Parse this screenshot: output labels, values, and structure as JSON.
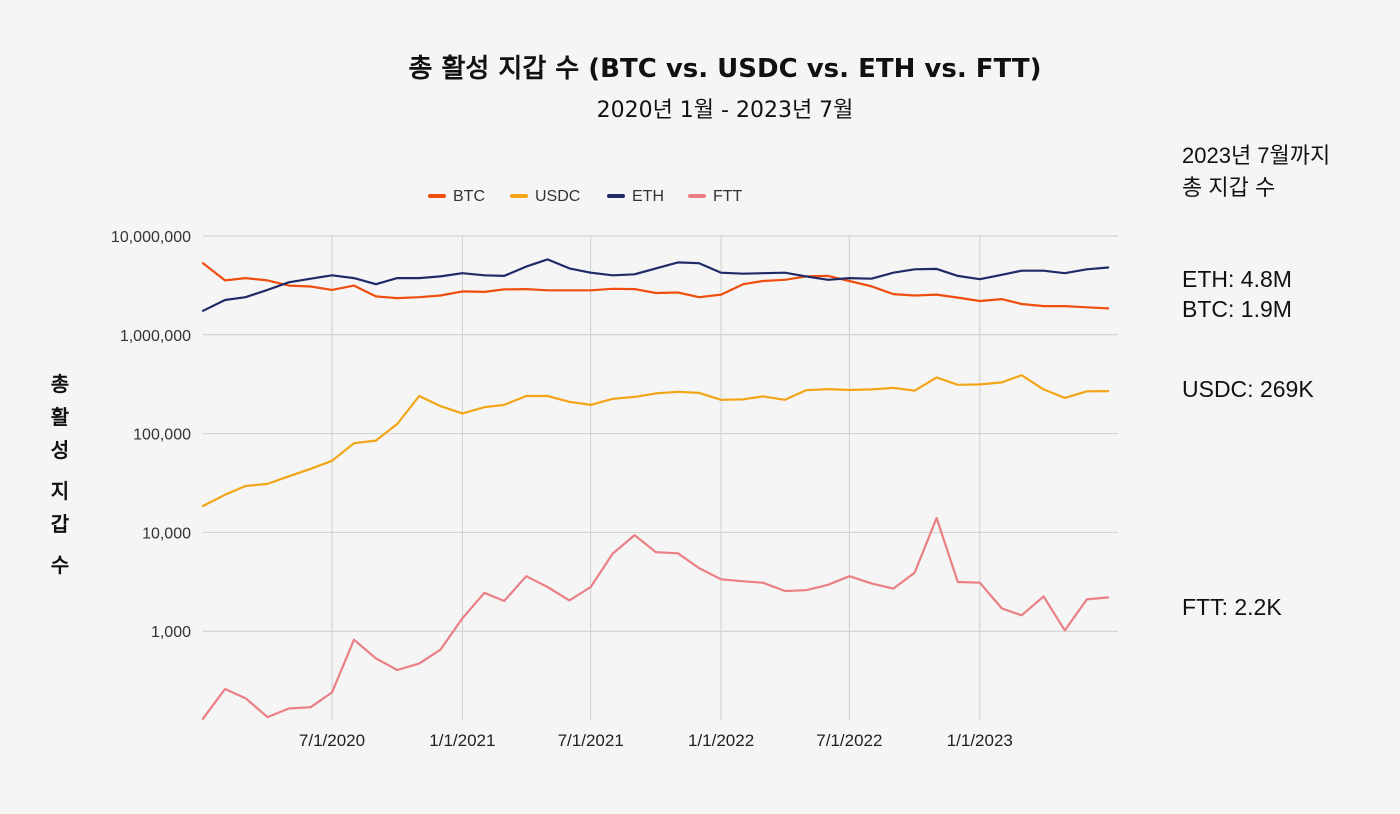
{
  "chart_data": {
    "type": "line",
    "title": "총 활성 지갑 수 (BTC vs. USDC vs. ETH vs. FTT)",
    "subtitle": "2020년 1월 - 2023년 7월",
    "ylabel": "총 활성 지갑 수",
    "xlabel": "",
    "y_scale": "log",
    "ylim": [
      130,
      10000000
    ],
    "y_ticks": [
      1000,
      10000,
      100000,
      1000000,
      10000000
    ],
    "y_tick_labels": [
      "1,000",
      "10,000",
      "100,000",
      "1,000,000",
      "10,000,000"
    ],
    "x_range": [
      "2020-01-01",
      "2023-07-15"
    ],
    "x_ticks": [
      "2020-07-01",
      "2021-01-01",
      "2021-07-01",
      "2022-01-01",
      "2022-07-01",
      "2023-01-01"
    ],
    "x_tick_labels": [
      "7/1/2020",
      "1/1/2021",
      "7/1/2021",
      "1/1/2022",
      "7/1/2022",
      "1/1/2023"
    ],
    "grid": true,
    "legend_position": "top",
    "x": [
      "2020-01-01",
      "2020-02-01",
      "2020-03-01",
      "2020-04-01",
      "2020-05-01",
      "2020-06-01",
      "2020-07-01",
      "2020-08-01",
      "2020-09-01",
      "2020-10-01",
      "2020-11-01",
      "2020-12-01",
      "2021-01-01",
      "2021-02-01",
      "2021-03-01",
      "2021-04-01",
      "2021-05-01",
      "2021-06-01",
      "2021-07-01",
      "2021-08-01",
      "2021-09-01",
      "2021-10-01",
      "2021-11-01",
      "2021-12-01",
      "2022-01-01",
      "2022-02-01",
      "2022-03-01",
      "2022-04-01",
      "2022-05-01",
      "2022-06-01",
      "2022-07-01",
      "2022-08-01",
      "2022-09-01",
      "2022-10-01",
      "2022-11-01",
      "2022-12-01",
      "2023-01-01",
      "2023-02-01",
      "2023-03-01",
      "2023-04-01",
      "2023-05-01",
      "2023-06-01",
      "2023-07-01"
    ],
    "series": [
      {
        "name": "BTC",
        "color": "#f04e0e",
        "values": [
          5300000,
          3550000,
          3750000,
          3550000,
          3150000,
          3080000,
          2850000,
          3150000,
          2450000,
          2350000,
          2400000,
          2500000,
          2750000,
          2720000,
          2880000,
          2900000,
          2820000,
          2820000,
          2820000,
          2920000,
          2900000,
          2650000,
          2680000,
          2400000,
          2550000,
          3250000,
          3500000,
          3600000,
          3900000,
          3950000,
          3500000,
          3100000,
          2580000,
          2500000,
          2550000,
          2380000,
          2200000,
          2300000,
          2050000,
          1950000,
          1950000,
          1900000,
          1850000
        ]
      },
      {
        "name": "USDC",
        "color": "#f2a516",
        "values": [
          18500,
          24000,
          29500,
          31000,
          37000,
          44000,
          53000,
          80000,
          85000,
          125000,
          240000,
          190000,
          160000,
          185000,
          195000,
          240000,
          240000,
          210000,
          195000,
          225000,
          235000,
          255000,
          265000,
          258000,
          220000,
          222000,
          238000,
          220000,
          275000,
          282000,
          276000,
          280000,
          290000,
          272000,
          370000,
          312000,
          315000,
          330000,
          390000,
          280000,
          230000,
          268000,
          269000
        ]
      },
      {
        "name": "ETH",
        "color": "#1e2b66",
        "values": [
          1750000,
          2250000,
          2400000,
          2850000,
          3400000,
          3700000,
          4000000,
          3750000,
          3250000,
          3750000,
          3750000,
          3900000,
          4200000,
          4000000,
          3950000,
          4900000,
          5800000,
          4700000,
          4250000,
          4000000,
          4100000,
          4700000,
          5400000,
          5300000,
          4250000,
          4150000,
          4200000,
          4250000,
          3900000,
          3600000,
          3750000,
          3700000,
          4250000,
          4600000,
          4650000,
          3950000,
          3650000,
          4050000,
          4450000,
          4450000,
          4200000,
          4600000,
          4800000
        ]
      },
      {
        "name": "FTT",
        "color": "#ea7f85",
        "values": [
          130,
          260,
          210,
          135,
          165,
          170,
          240,
          820,
          530,
          405,
          470,
          650,
          1350,
          2450,
          2020,
          3600,
          2800,
          2050,
          2800,
          6100,
          9400,
          6300,
          6150,
          4350,
          3350,
          3200,
          3100,
          2550,
          2600,
          2950,
          3600,
          3050,
          2700,
          3900,
          14000,
          3150,
          3100,
          1700,
          1450,
          2250,
          1020,
          2100,
          2200
        ]
      }
    ],
    "side_panel": {
      "heading_line1": "2023년 7월까지",
      "heading_line2": "총 지갑 수",
      "eth": "ETH: 4.8M",
      "btc": "BTC: 1.9M",
      "usdc": "USDC: 269K",
      "ftt": "FTT: 2.2K"
    }
  }
}
